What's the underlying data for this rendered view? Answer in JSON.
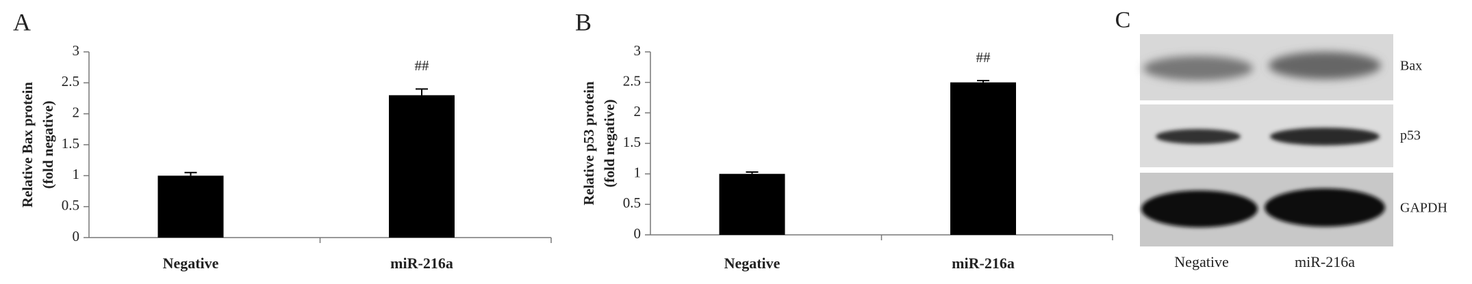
{
  "chart_data": [
    {
      "type": "bar",
      "panel": "A",
      "ylabel": [
        "Relative Bax protein",
        "(fold negative)"
      ],
      "categories": [
        "Negative",
        "miR-216a"
      ],
      "values": [
        1.0,
        2.3
      ],
      "errors": [
        0.05,
        0.1
      ],
      "significance": [
        null,
        "##"
      ],
      "color": "#000000",
      "ylim": [
        0,
        3
      ],
      "yticks": [
        0,
        0.5,
        1,
        1.5,
        2,
        2.5,
        3
      ]
    },
    {
      "type": "bar",
      "panel": "B",
      "ylabel": [
        "Relative p53 protein",
        "(fold negative)"
      ],
      "categories": [
        "Negative",
        "miR-216a"
      ],
      "values": [
        1.0,
        2.5
      ],
      "errors": [
        0.03,
        0.03
      ],
      "significance": [
        null,
        "##"
      ],
      "color": "#000000",
      "ylim": [
        0,
        3
      ],
      "yticks": [
        0,
        0.5,
        1,
        1.5,
        2,
        2.5,
        3
      ]
    }
  ],
  "blot": {
    "panel": "C",
    "bands": [
      "Bax",
      "p53",
      "GAPDH"
    ],
    "lanes": [
      "Negative",
      "miR-216a"
    ]
  }
}
